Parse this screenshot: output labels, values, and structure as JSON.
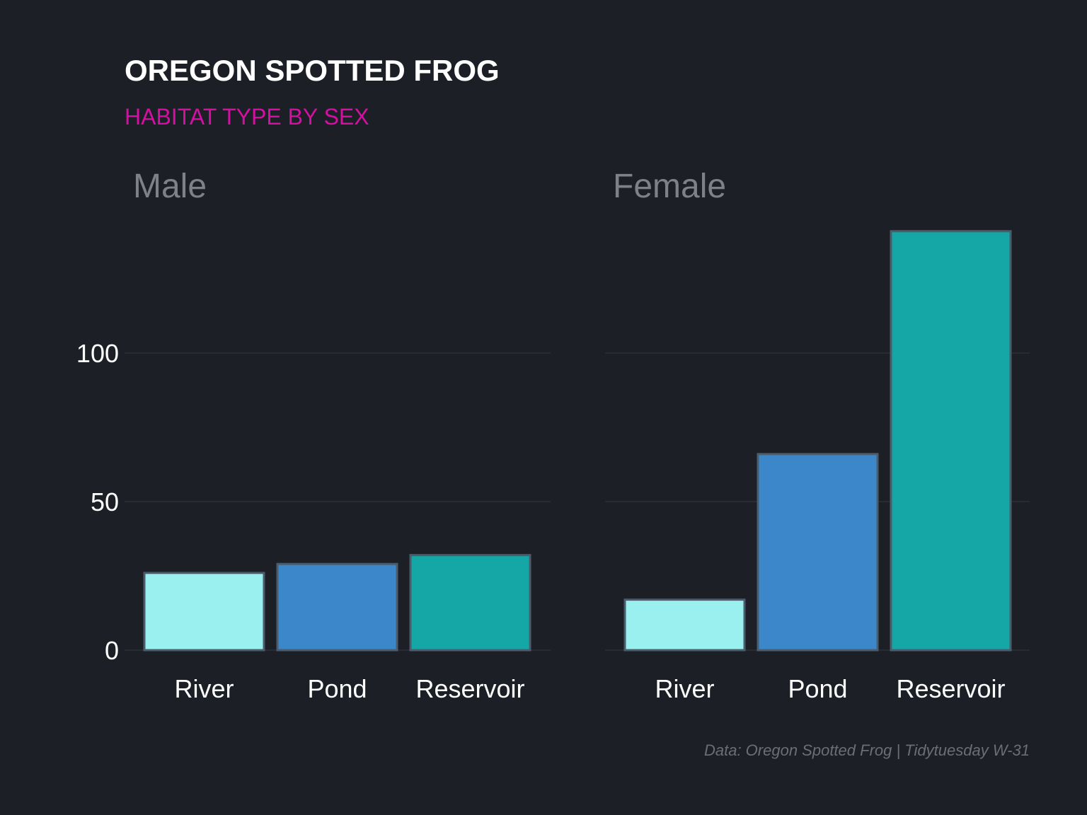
{
  "chart_data": {
    "type": "bar",
    "title": "OREGON SPOTTED FROG",
    "subtitle": "HABITAT TYPE BY SEX",
    "caption": "Data: Oregon Spotted Frog | Tidytuesday W-31",
    "categories": [
      "River",
      "Pond",
      "Reservoir"
    ],
    "colors": {
      "River": "#9af0ef",
      "Pond": "#3b87c9",
      "Reservoir": "#15a7a6",
      "bar_border": "#4b5c6c",
      "background": "#1d1f26",
      "title": "#ffffff",
      "subtitle": "#d60fa3",
      "panel_label": "#808088",
      "gridline": "#30333c"
    },
    "ylim": [
      0,
      145
    ],
    "yticks": [
      0,
      50,
      100
    ],
    "grid": true,
    "facets": [
      {
        "name": "Male",
        "values": [
          26,
          29,
          32
        ]
      },
      {
        "name": "Female",
        "values": [
          17,
          66,
          141
        ]
      }
    ]
  }
}
